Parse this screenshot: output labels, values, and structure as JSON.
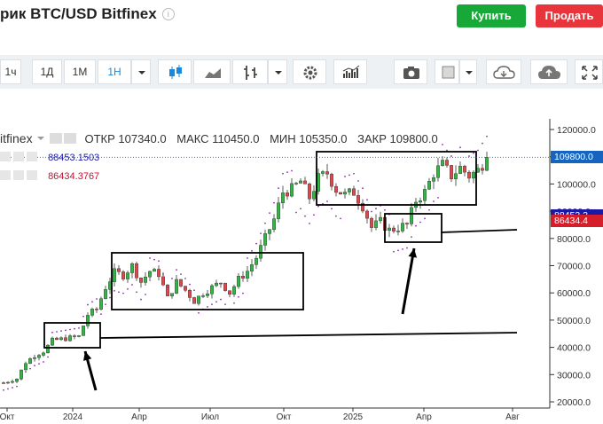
{
  "header": {
    "title": "рик BTC/USD Bitfinex",
    "info_icon": "info-icon",
    "buy_label": "Купить",
    "sell_label": "Продать",
    "buy_color": "#17a837",
    "sell_color": "#e8353b"
  },
  "toolbar": {
    "timeframes": [
      "1ч",
      "1Д",
      "1М",
      "1Н"
    ],
    "active_timeframe": "1Н",
    "icons": [
      "chevron-down-icon",
      "candlestick-icon",
      "area-chart-icon",
      "bar-chart-icon",
      "chevron-down-icon",
      "gear-icon",
      "indicators-icon",
      "camera-icon",
      "color-swatch-icon",
      "chevron-down-icon",
      "cloud-download-icon",
      "cloud-upload-icon",
      "fullscreen-icon"
    ]
  },
  "legend": {
    "symbol": "itfinex",
    "open_label": "ОТКР",
    "open_value": "107340.0",
    "high_label": "МАКС",
    "high_value": "110450.0",
    "low_label": "МИН",
    "low_value": "105350.0",
    "close_label": "ЗАКР",
    "close_value": "109800.0",
    "indicator1": "88453.1503",
    "indicator2": "86434.3767"
  },
  "chart_data": {
    "type": "candlestick",
    "y_ticks": [
      "120000.0",
      "110000.0",
      "100000.0",
      "90000.0",
      "80000.0",
      "70000.0",
      "60000.0",
      "50000.0",
      "40000.0",
      "30000.0",
      "20000.0"
    ],
    "x_ticks": [
      "Окт",
      "2024",
      "Апр",
      "Июл",
      "Окт",
      "2025",
      "Апр",
      "Авг"
    ],
    "ylim": [
      17000,
      123000
    ],
    "price_labels": [
      {
        "text": "109800.0",
        "value": 109800,
        "bg": "#1565c0",
        "fg": "#ffffff"
      },
      {
        "text": "88453.2",
        "value": 88453.2,
        "bg": "#1a1aa8",
        "fg": "#ffffff"
      },
      {
        "text": "86434.4",
        "value": 86434.4,
        "bg": "#d61d2a",
        "fg": "#ffffff"
      }
    ],
    "last_close": 109800,
    "up_color": "#31b545",
    "down_color": "#e0474c",
    "sar_color": "#8d2fb0"
  }
}
